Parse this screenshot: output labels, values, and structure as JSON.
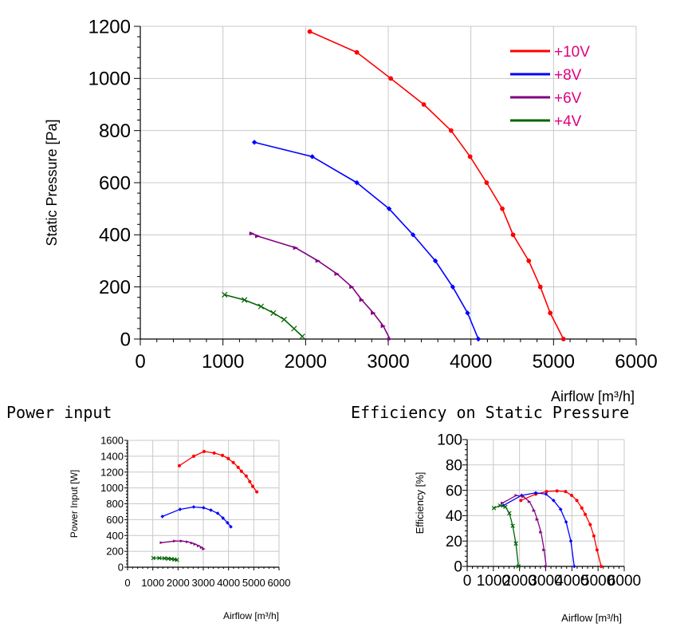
{
  "titles": {
    "power": "Power input",
    "efficiency": "Efficiency on Static Pressure"
  },
  "series_meta": [
    {
      "name": "+10V",
      "color": "#ff0000"
    },
    {
      "name": "+8V",
      "color": "#0000ff"
    },
    {
      "name": "+6V",
      "color": "#800080"
    },
    {
      "name": "+4V",
      "color": "#006400"
    }
  ],
  "legend_text_color": "#e0007f",
  "chart_data": [
    {
      "id": "pressure",
      "type": "line",
      "title": "",
      "xlabel": "Airflow [m³/h]",
      "ylabel": "Static Pressure [Pa]",
      "xlim": [
        0,
        6000
      ],
      "ylim": [
        0,
        1200
      ],
      "xticks": [
        0,
        1000,
        2000,
        3000,
        4000,
        5000,
        6000
      ],
      "yticks": [
        0,
        200,
        400,
        600,
        800,
        1000,
        1200
      ],
      "grid": true,
      "legend": "top-right",
      "series": [
        {
          "name": "+10V",
          "x": [
            2050,
            2620,
            3030,
            3430,
            3760,
            3990,
            4190,
            4380,
            4510,
            4700,
            4840,
            4960,
            5120
          ],
          "y": [
            1180,
            1100,
            1000,
            900,
            800,
            700,
            600,
            500,
            400,
            300,
            200,
            100,
            0
          ]
        },
        {
          "name": "+8V",
          "x": [
            1380,
            2080,
            2620,
            3010,
            3300,
            3570,
            3780,
            3960,
            4090
          ],
          "y": [
            755,
            700,
            600,
            500,
            400,
            300,
            200,
            100,
            0
          ]
        },
        {
          "name": "+6V",
          "x": [
            1350,
            1420,
            1880,
            2150,
            2380,
            2560,
            2680,
            2820,
            2940,
            3020
          ],
          "y": [
            405,
            395,
            350,
            300,
            250,
            200,
            150,
            100,
            50,
            0
          ]
        },
        {
          "name": "+4V",
          "x": [
            1020,
            1260,
            1460,
            1610,
            1740,
            1860,
            1960
          ],
          "y": [
            170,
            150,
            125,
            100,
            75,
            40,
            10
          ]
        }
      ]
    },
    {
      "id": "power",
      "type": "line",
      "title": "",
      "xlabel": "Airflow [m³/h]",
      "ylabel": "Power Input [W]",
      "xlim": [
        0,
        6000
      ],
      "ylim": [
        0,
        1600
      ],
      "xticks": [
        0,
        1000,
        2000,
        3000,
        4000,
        5000,
        6000
      ],
      "yticks": [
        0,
        200,
        400,
        600,
        800,
        1000,
        1200,
        1400,
        1600
      ],
      "grid": true,
      "series": [
        {
          "name": "+10V",
          "x": [
            2050,
            2620,
            3030,
            3430,
            3760,
            3990,
            4190,
            4380,
            4510,
            4700,
            4840,
            4960,
            5120
          ],
          "y": [
            1280,
            1400,
            1460,
            1440,
            1410,
            1370,
            1320,
            1260,
            1210,
            1150,
            1080,
            1020,
            950
          ]
        },
        {
          "name": "+8V",
          "x": [
            1380,
            2080,
            2620,
            3010,
            3300,
            3570,
            3780,
            3960,
            4090
          ],
          "y": [
            640,
            730,
            760,
            750,
            720,
            680,
            620,
            560,
            510
          ]
        },
        {
          "name": "+6V",
          "x": [
            1350,
            1880,
            2150,
            2380,
            2560,
            2680,
            2820,
            2940,
            3020
          ],
          "y": [
            310,
            330,
            330,
            320,
            305,
            290,
            270,
            250,
            230
          ]
        },
        {
          "name": "+4V",
          "x": [
            1020,
            1260,
            1460,
            1610,
            1740,
            1860,
            1960
          ],
          "y": [
            115,
            115,
            112,
            108,
            104,
            98,
            92
          ]
        }
      ]
    },
    {
      "id": "efficiency",
      "type": "line",
      "title": "",
      "xlabel": "Airflow [m³/h]",
      "ylabel": "Efficiency [%]",
      "xlim": [
        0,
        6000
      ],
      "ylim": [
        0,
        100
      ],
      "xticks": [
        0,
        1000,
        2000,
        3000,
        4000,
        5000,
        6000
      ],
      "yticks": [
        0,
        20,
        40,
        60,
        80,
        100
      ],
      "grid": true,
      "series": [
        {
          "name": "+10V",
          "x": [
            2050,
            2620,
            3030,
            3430,
            3760,
            3990,
            4190,
            4380,
            4510,
            4700,
            4840,
            4960,
            5120
          ],
          "y": [
            52,
            57,
            59,
            59.5,
            59,
            56,
            52,
            46,
            41,
            33,
            24,
            13,
            0
          ]
        },
        {
          "name": "+8V",
          "x": [
            1380,
            2080,
            2620,
            3010,
            3300,
            3570,
            3780,
            3960,
            4090
          ],
          "y": [
            48,
            56,
            58,
            57,
            52,
            45,
            35,
            20,
            0
          ]
        },
        {
          "name": "+6V",
          "x": [
            1350,
            1880,
            2150,
            2380,
            2560,
            2680,
            2820,
            2940,
            3020
          ],
          "y": [
            50,
            56,
            55,
            51,
            44,
            37,
            27,
            13,
            0
          ]
        },
        {
          "name": "+4V",
          "x": [
            1020,
            1260,
            1460,
            1610,
            1740,
            1860,
            1960
          ],
          "y": [
            46,
            48,
            47,
            42,
            32,
            18,
            0
          ]
        }
      ]
    }
  ]
}
